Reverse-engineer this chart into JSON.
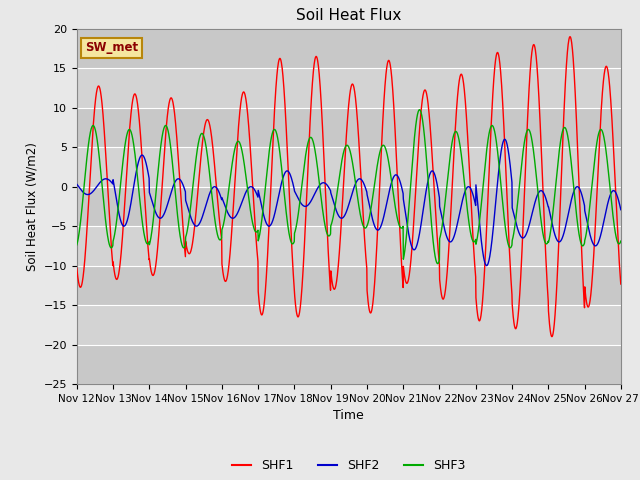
{
  "title": "Soil Heat Flux",
  "xlabel": "Time",
  "ylabel": "Soil Heat Flux (W/m2)",
  "ylim": [
    -25,
    20
  ],
  "yticks": [
    -25,
    -20,
    -15,
    -10,
    -5,
    0,
    5,
    10,
    15,
    20
  ],
  "bg_color": "#e8e8e8",
  "plot_bg_color": "#d3d3d3",
  "grid_color": "#ffffff",
  "band_color": "#c8c8c8",
  "shf1_color": "#ff0000",
  "shf2_color": "#0000cc",
  "shf3_color": "#00aa00",
  "legend_label_shf1": "SHF1",
  "legend_label_shf2": "SHF2",
  "legend_label_shf3": "SHF3",
  "inset_label": "SW_met",
  "x_tick_labels": [
    "Nov 12",
    "Nov 13",
    "Nov 14",
    "Nov 15",
    "Nov 16",
    "Nov 17",
    "Nov 18",
    "Nov 19",
    "Nov 20",
    "Nov 21",
    "Nov 22",
    "Nov 23",
    "Nov 24",
    "Nov 25",
    "Nov 26",
    "Nov 27"
  ],
  "n_days": 15,
  "samples_per_day": 144
}
